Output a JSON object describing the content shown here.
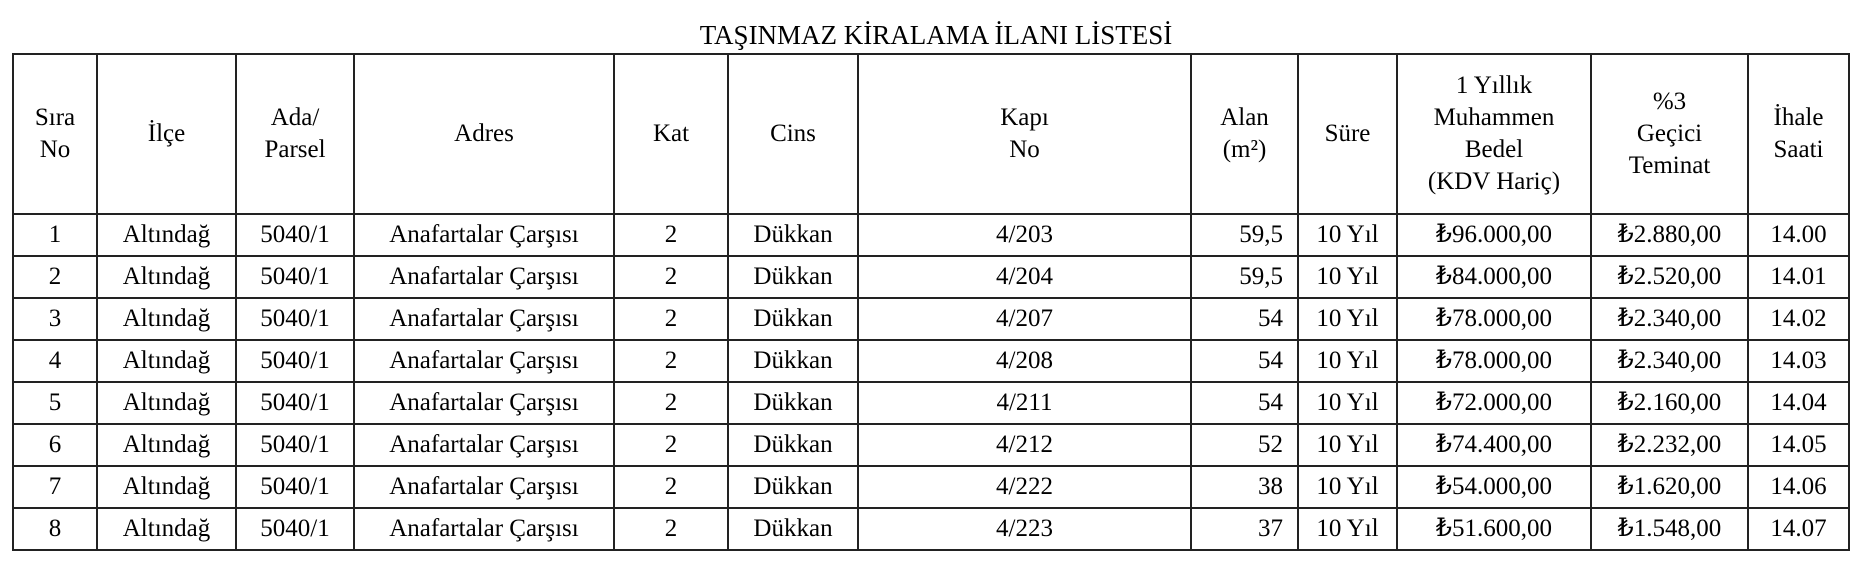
{
  "title": "TAŞINMAZ KİRALAMA İLANI LİSTESİ",
  "headers": [
    [
      "Sıra",
      "No"
    ],
    [
      "İlçe"
    ],
    [
      "Ada/",
      "Parsel"
    ],
    [
      "Adres"
    ],
    [
      "Kat"
    ],
    [
      "Cins"
    ],
    [
      "Kapı",
      "No"
    ],
    [
      "Alan",
      "(m²)"
    ],
    [
      "Süre"
    ],
    [
      "1 Yıllık",
      "Muhammen",
      "Bedel",
      "(KDV Hariç)"
    ],
    [
      "%3",
      "Geçici",
      "Teminat"
    ],
    [
      "İhale",
      "Saati"
    ]
  ],
  "rows": [
    [
      "1",
      "Altındağ",
      "5040/1",
      "Anafartalar Çarşısı",
      "2",
      "Dükkan",
      "4/203",
      "59,5",
      "10 Yıl",
      "₺96.000,00",
      "₺2.880,00",
      "14.00"
    ],
    [
      "2",
      "Altındağ",
      "5040/1",
      "Anafartalar Çarşısı",
      "2",
      "Dükkan",
      "4/204",
      "59,5",
      "10 Yıl",
      "₺84.000,00",
      "₺2.520,00",
      "14.01"
    ],
    [
      "3",
      "Altındağ",
      "5040/1",
      "Anafartalar Çarşısı",
      "2",
      "Dükkan",
      "4/207",
      "54",
      "10 Yıl",
      "₺78.000,00",
      "₺2.340,00",
      "14.02"
    ],
    [
      "4",
      "Altındağ",
      "5040/1",
      "Anafartalar Çarşısı",
      "2",
      "Dükkan",
      "4/208",
      "54",
      "10 Yıl",
      "₺78.000,00",
      "₺2.340,00",
      "14.03"
    ],
    [
      "5",
      "Altındağ",
      "5040/1",
      "Anafartalar Çarşısı",
      "2",
      "Dükkan",
      "4/211",
      "54",
      "10 Yıl",
      "₺72.000,00",
      "₺2.160,00",
      "14.04"
    ],
    [
      "6",
      "Altındağ",
      "5040/1",
      "Anafartalar Çarşısı",
      "2",
      "Dükkan",
      "4/212",
      "52",
      "10 Yıl",
      "₺74.400,00",
      "₺2.232,00",
      "14.05"
    ],
    [
      "7",
      "Altındağ",
      "5040/1",
      "Anafartalar Çarşısı",
      "2",
      "Dükkan",
      "4/222",
      "38",
      "10 Yıl",
      "₺54.000,00",
      "₺1.620,00",
      "14.06"
    ],
    [
      "8",
      "Altındağ",
      "5040/1",
      "Anafartalar Çarşısı",
      "2",
      "Dükkan",
      "4/223",
      "37",
      "10 Yıl",
      "₺51.600,00",
      "₺1.548,00",
      "14.07"
    ]
  ]
}
